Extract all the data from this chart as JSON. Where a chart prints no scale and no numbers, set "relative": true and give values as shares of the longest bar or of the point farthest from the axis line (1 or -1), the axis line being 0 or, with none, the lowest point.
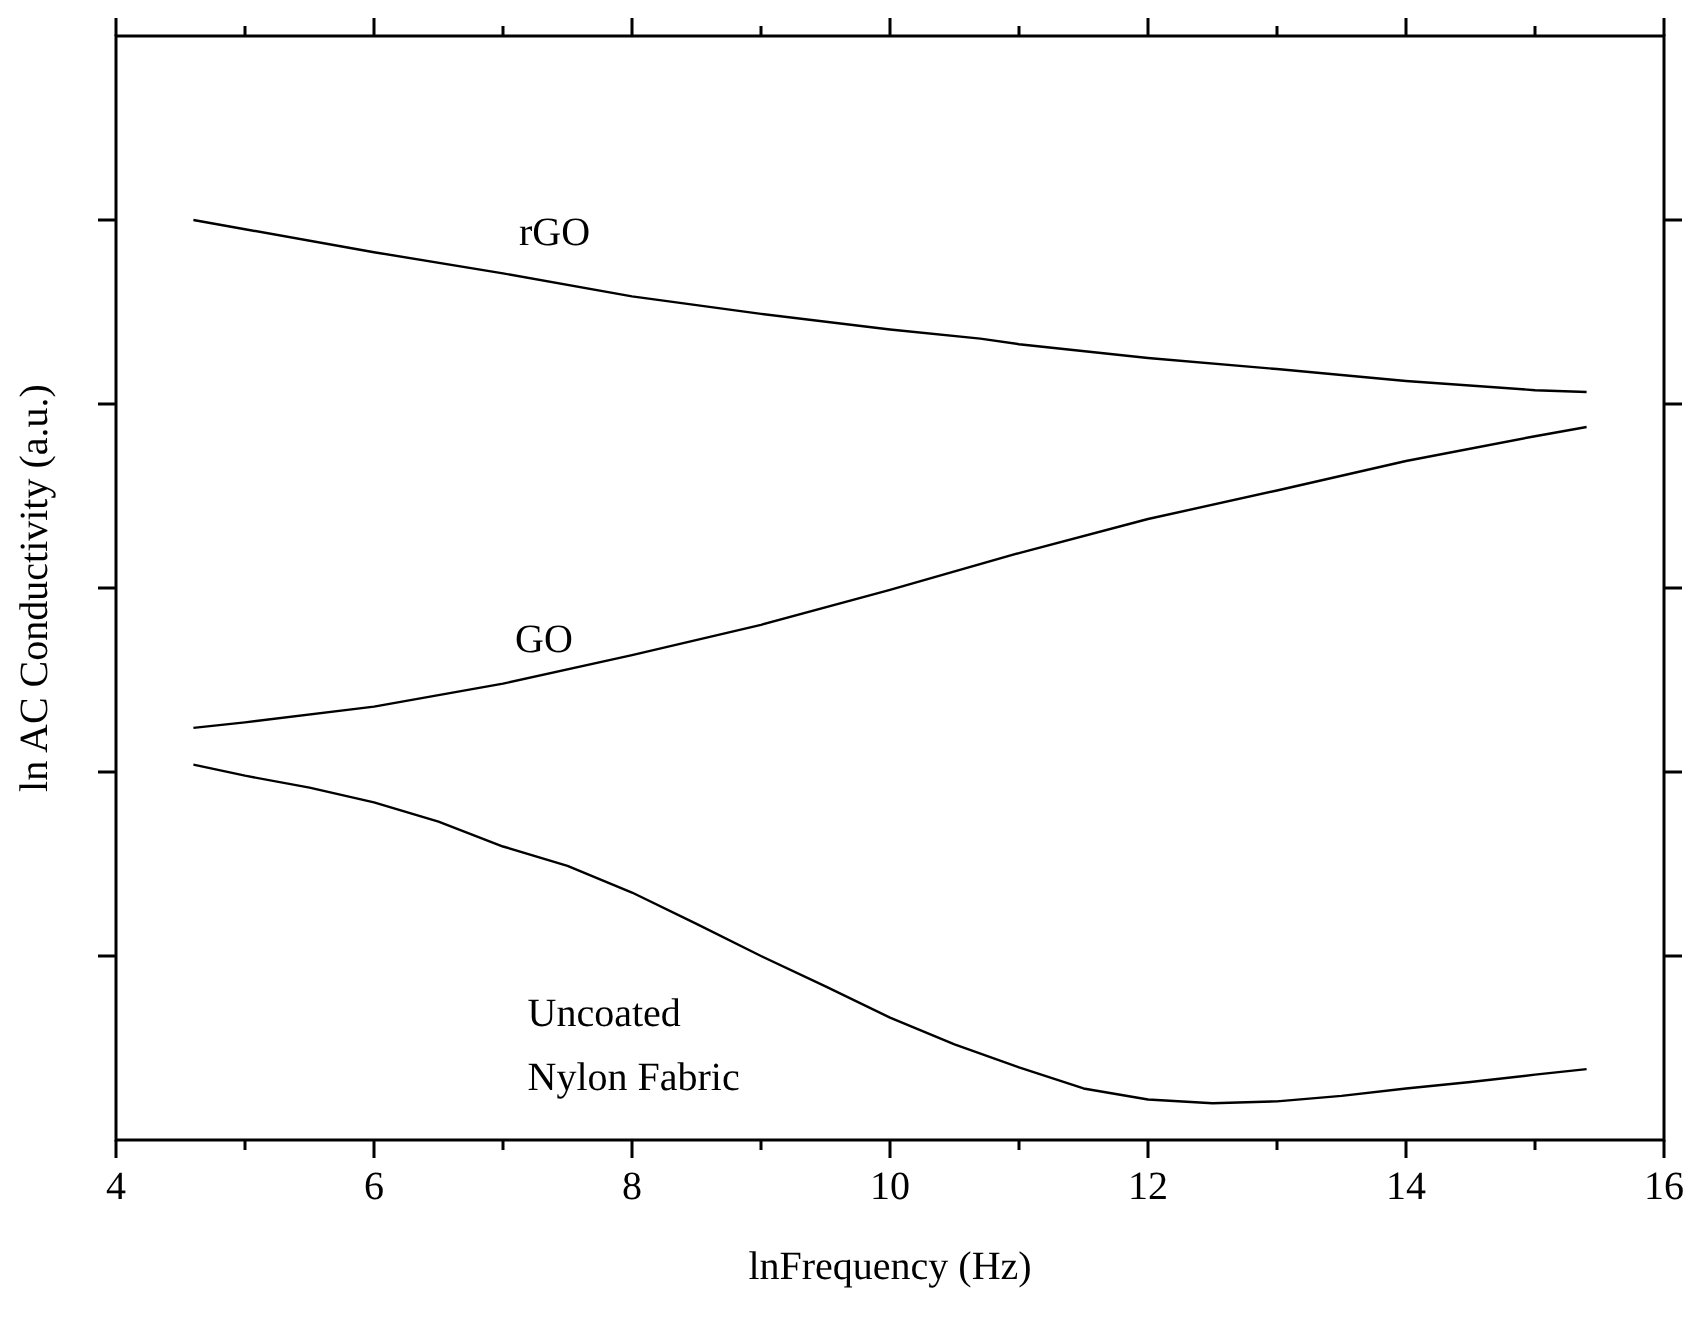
{
  "chart_data": {
    "type": "line",
    "xlabel": "lnFrequency (Hz)",
    "ylabel": "ln AC Conductivity (a.u.)",
    "relative": true,
    "tick_labels": "x",
    "legend": false,
    "grid": false,
    "marker": "none",
    "line_style": "solid",
    "xlim": [
      4,
      16
    ],
    "xticks": [
      4,
      {
        "value": 5,
        "label": null
      },
      6,
      {
        "value": 7,
        "label": null
      },
      8,
      {
        "value": 9,
        "label": null
      },
      10,
      {
        "value": 11,
        "label": null
      },
      12,
      {
        "value": 13,
        "label": null
      },
      14,
      {
        "value": 15,
        "label": null
      },
      16
    ],
    "series": [
      {
        "name": "rGO",
        "color": "#000000",
        "x": [
          4.6,
          5,
          6,
          7,
          8,
          9,
          10,
          10.7,
          11,
          12,
          13,
          14,
          15,
          15.4
        ],
        "values": [
          1.0,
          0.99,
          0.965,
          0.942,
          0.917,
          0.898,
          0.881,
          0.871,
          0.865,
          0.85,
          0.838,
          0.825,
          0.815,
          0.813
        ]
      },
      {
        "name": "GO",
        "color": "#000000",
        "x": [
          4.6,
          5,
          6,
          7,
          8,
          9,
          10,
          11,
          12,
          13,
          14,
          15,
          15.4
        ],
        "values": [
          0.448,
          0.454,
          0.471,
          0.496,
          0.527,
          0.56,
          0.598,
          0.638,
          0.675,
          0.706,
          0.738,
          0.765,
          0.775
        ]
      },
      {
        "name": "Uncoated Nylon Fabric",
        "color": "#000000",
        "x": [
          4.6,
          5,
          5.5,
          6,
          6.5,
          7,
          7.5,
          8,
          8.5,
          9,
          9.5,
          10,
          10.5,
          11,
          11.5,
          12,
          12.5,
          13,
          13.5,
          14,
          14.5,
          15,
          15.4
        ],
        "values": [
          0.408,
          0.396,
          0.383,
          0.367,
          0.346,
          0.319,
          0.298,
          0.269,
          0.235,
          0.2,
          0.167,
          0.133,
          0.104,
          0.079,
          0.056,
          0.044,
          0.04,
          0.042,
          0.048,
          0.056,
          0.063,
          0.071,
          0.077
        ]
      }
    ]
  }
}
